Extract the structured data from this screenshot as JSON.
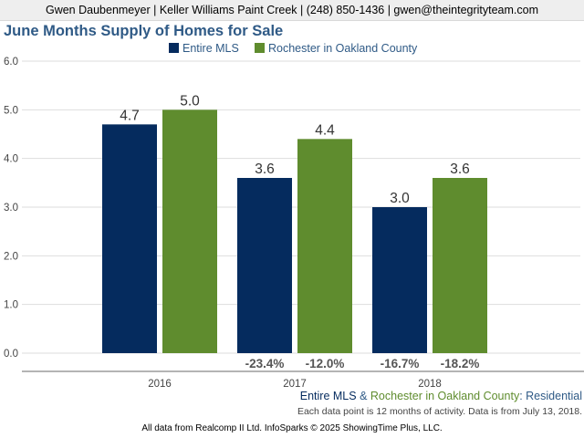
{
  "header": {
    "contact": "Gwen Daubenmeyer | Keller Williams Paint Creek | (248) 850-1436 | gwen@theintegrityteam.com"
  },
  "chart_data": {
    "type": "bar",
    "title": "June Months Supply of Homes for Sale",
    "categories": [
      "2016",
      "2017",
      "2018"
    ],
    "ylim": [
      0,
      6
    ],
    "yticks": [
      "0.0",
      "1.0",
      "2.0",
      "3.0",
      "4.0",
      "5.0",
      "6.0"
    ],
    "grid": true,
    "legend_position": "top-center",
    "series": [
      {
        "name": "Entire MLS",
        "color": "#052b5e",
        "values": [
          4.7,
          3.6,
          3.0
        ],
        "value_labels": [
          "4.7",
          "3.6",
          "3.0"
        ],
        "change_labels": [
          "",
          "-23.4%",
          "-16.7%"
        ]
      },
      {
        "name": "Rochester in Oakland County",
        "color": "#5f8c2e",
        "values": [
          5.0,
          4.4,
          3.6
        ],
        "value_labels": [
          "5.0",
          "4.4",
          "3.6"
        ],
        "change_labels": [
          "",
          "-12.0%",
          "-18.2%"
        ]
      }
    ]
  },
  "footer": {
    "series_a": "Entire MLS",
    "amp": "&",
    "series_b": "Rochester in Oakland County",
    "colon": ":",
    "type": "Residential",
    "note": "Each data point is 12 months of activity. Data is from July 13, 2018.",
    "credit": "All data from Realcomp II Ltd. InfoSparks © 2025 ShowingTime Plus, LLC."
  },
  "colors": {
    "title": "#2f5a86",
    "entire_mls": "#052b5e",
    "rochester": "#5f8c2e",
    "residential": "#2f5a86",
    "change_label": "#555555"
  }
}
